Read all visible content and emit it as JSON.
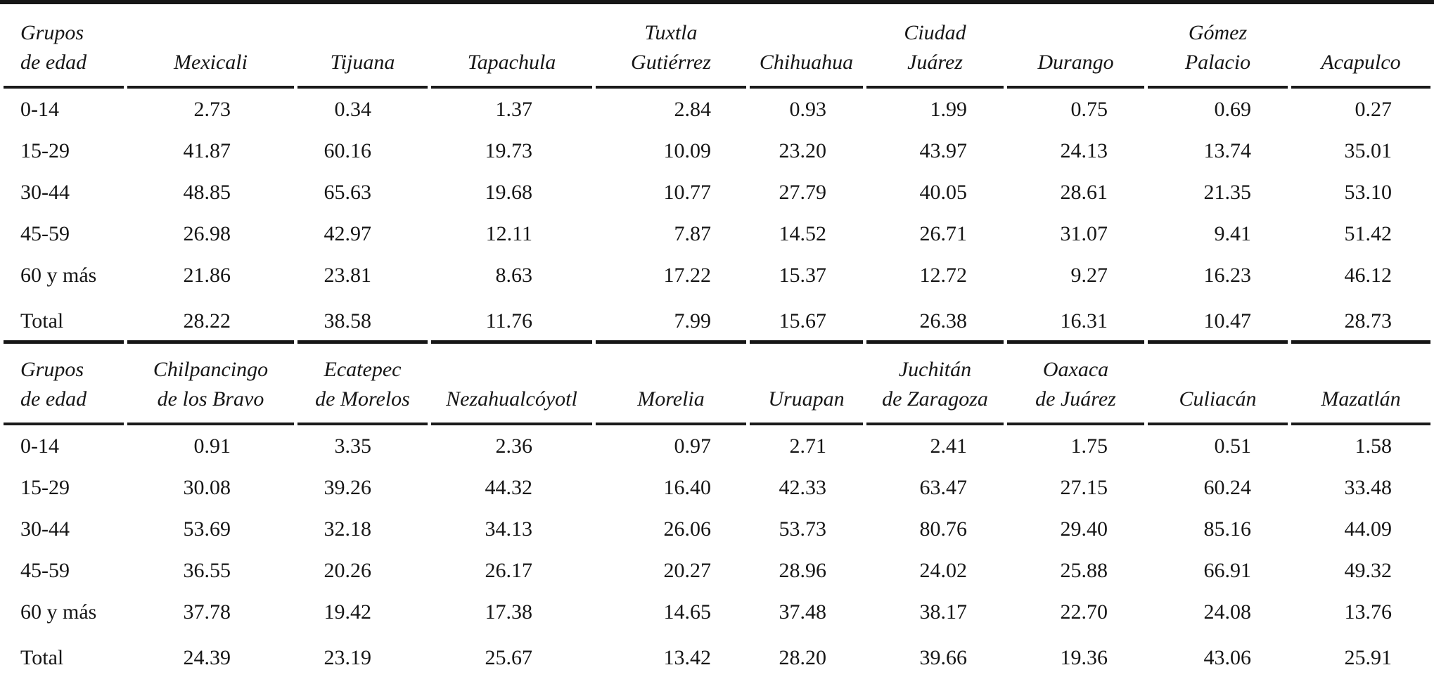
{
  "tables": [
    {
      "group_header_lines": [
        "Grupos",
        "de edad"
      ],
      "column_header_lines": [
        [
          "Mexicali"
        ],
        [
          "Tijuana"
        ],
        [
          "Tapachula"
        ],
        [
          "Tuxtla",
          "Gutiérrez"
        ],
        [
          "Chihuahua"
        ],
        [
          "Ciudad",
          "Juárez"
        ],
        [
          "Durango"
        ],
        [
          "Gómez",
          "Palacio"
        ],
        [
          "Acapulco"
        ]
      ],
      "rows": [
        {
          "label": "0-14",
          "values": [
            "2.73",
            "0.34",
            "1.37",
            "2.84",
            "0.93",
            "1.99",
            "0.75",
            "0.69",
            "0.27"
          ]
        },
        {
          "label": "15-29",
          "values": [
            "41.87",
            "60.16",
            "19.73",
            "10.09",
            "23.20",
            "43.97",
            "24.13",
            "13.74",
            "35.01"
          ]
        },
        {
          "label": "30-44",
          "values": [
            "48.85",
            "65.63",
            "19.68",
            "10.77",
            "27.79",
            "40.05",
            "28.61",
            "21.35",
            "53.10"
          ]
        },
        {
          "label": "45-59",
          "values": [
            "26.98",
            "42.97",
            "12.11",
            "7.87",
            "14.52",
            "26.71",
            "31.07",
            "9.41",
            "51.42"
          ]
        },
        {
          "label": "60 y más",
          "values": [
            "21.86",
            "23.81",
            "8.63",
            "17.22",
            "15.37",
            "12.72",
            "9.27",
            "16.23",
            "46.12"
          ]
        },
        {
          "label": "Total",
          "values": [
            "28.22",
            "38.58",
            "11.76",
            "7.99",
            "15.67",
            "26.38",
            "16.31",
            "10.47",
            "28.73"
          ]
        }
      ]
    },
    {
      "group_header_lines": [
        "Grupos",
        "de edad"
      ],
      "column_header_lines": [
        [
          "Chilpancingo",
          "de los Bravo"
        ],
        [
          "Ecatepec",
          "de Morelos"
        ],
        [
          "Nezahualcóyotl"
        ],
        [
          "Morelia"
        ],
        [
          "Uruapan"
        ],
        [
          "Juchitán",
          "de Zaragoza"
        ],
        [
          "Oaxaca",
          "de Juárez"
        ],
        [
          "Culiacán"
        ],
        [
          "Mazatlán"
        ]
      ],
      "rows": [
        {
          "label": "0-14",
          "values": [
            "0.91",
            "3.35",
            "2.36",
            "0.97",
            "2.71",
            "2.41",
            "1.75",
            "0.51",
            "1.58"
          ]
        },
        {
          "label": "15-29",
          "values": [
            "30.08",
            "39.26",
            "44.32",
            "16.40",
            "42.33",
            "63.47",
            "27.15",
            "60.24",
            "33.48"
          ]
        },
        {
          "label": "30-44",
          "values": [
            "53.69",
            "32.18",
            "34.13",
            "26.06",
            "53.73",
            "80.76",
            "29.40",
            "85.16",
            "44.09"
          ]
        },
        {
          "label": "45-59",
          "values": [
            "36.55",
            "20.26",
            "26.17",
            "20.27",
            "28.96",
            "24.02",
            "25.88",
            "66.91",
            "49.32"
          ]
        },
        {
          "label": "60 y más",
          "values": [
            "37.78",
            "19.42",
            "17.38",
            "14.65",
            "37.48",
            "38.17",
            "22.70",
            "24.08",
            "13.76"
          ]
        },
        {
          "label": "Total",
          "values": [
            "24.39",
            "23.19",
            "25.67",
            "13.42",
            "28.20",
            "39.66",
            "19.36",
            "43.06",
            "25.91"
          ]
        }
      ]
    }
  ]
}
